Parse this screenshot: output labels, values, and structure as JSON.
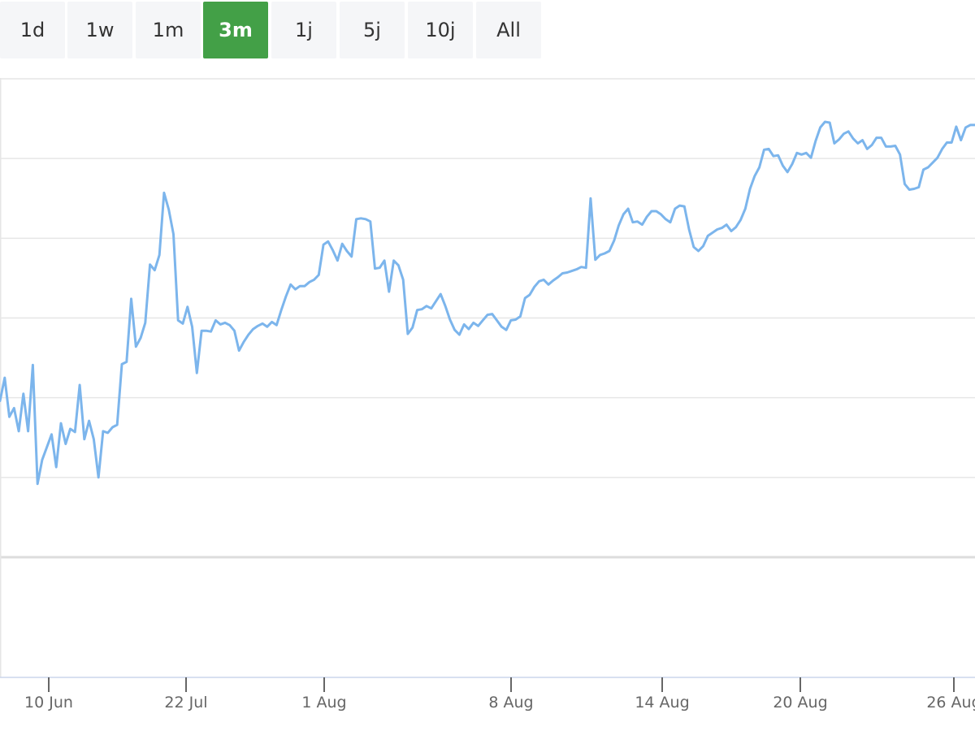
{
  "range_selector": {
    "buttons": [
      "1d",
      "1w",
      "1m",
      "3m",
      "1j",
      "5j",
      "10j",
      "All"
    ],
    "active": "3m"
  },
  "colors": {
    "series": "#7cb5ec",
    "active_button": "#43a047",
    "button_bg": "#f5f6f8",
    "grid": "#e6e6e6"
  },
  "chart_data": {
    "type": "line",
    "title": "",
    "xlabel": "",
    "ylabel": "",
    "x_ticks": [
      "10 Jun",
      "22 Jul",
      "1 Aug",
      "8 Aug",
      "14 Aug",
      "20 Aug",
      "26 Aug"
    ],
    "grid": true,
    "legend": "none",
    "y_axis_labels_shown": false,
    "ylim": [
      0,
      6
    ],
    "series": [
      {
        "values": [
          1.96,
          2.25,
          1.76,
          1.87,
          1.58,
          2.05,
          1.58,
          2.41,
          0.92,
          1.22,
          1.38,
          1.54,
          1.13,
          1.68,
          1.42,
          1.61,
          1.57,
          2.16,
          1.48,
          1.71,
          1.48,
          1.0,
          1.58,
          1.56,
          1.63,
          1.66,
          2.42,
          2.45,
          3.24,
          2.64,
          2.75,
          2.94,
          3.67,
          3.6,
          3.79,
          4.57,
          4.36,
          4.05,
          2.97,
          2.93,
          3.14,
          2.89,
          2.31,
          2.84,
          2.84,
          2.83,
          2.97,
          2.92,
          2.94,
          2.91,
          2.84,
          2.59,
          2.7,
          2.79,
          2.86,
          2.9,
          2.93,
          2.89,
          2.95,
          2.91,
          3.1,
          3.27,
          3.42,
          3.36,
          3.4,
          3.4,
          3.45,
          3.48,
          3.54,
          3.92,
          3.96,
          3.85,
          3.72,
          3.93,
          3.84,
          3.77,
          4.24,
          4.25,
          4.24,
          4.21,
          3.62,
          3.63,
          3.72,
          3.33,
          3.72,
          3.66,
          3.48,
          2.8,
          2.88,
          3.1,
          3.11,
          3.15,
          3.12,
          3.21,
          3.3,
          3.15,
          2.98,
          2.85,
          2.79,
          2.92,
          2.86,
          2.94,
          2.9,
          2.97,
          3.04,
          3.05,
          2.97,
          2.89,
          2.85,
          2.97,
          2.98,
          3.02,
          3.25,
          3.29,
          3.39,
          3.46,
          3.48,
          3.42,
          3.47,
          3.51,
          3.56,
          3.57,
          3.59,
          3.61,
          3.64,
          3.63,
          4.5,
          3.73,
          3.79,
          3.81,
          3.84,
          3.97,
          4.16,
          4.3,
          4.37,
          4.2,
          4.21,
          4.17,
          4.27,
          4.34,
          4.34,
          4.3,
          4.24,
          4.2,
          4.37,
          4.41,
          4.4,
          4.11,
          3.89,
          3.84,
          3.9,
          4.03,
          4.07,
          4.11,
          4.13,
          4.17,
          4.09,
          4.14,
          4.23,
          4.37,
          4.62,
          4.78,
          4.89,
          5.11,
          5.12,
          5.03,
          5.04,
          4.91,
          4.83,
          4.93,
          5.07,
          5.05,
          5.07,
          5.01,
          5.22,
          5.39,
          5.46,
          5.45,
          5.19,
          5.24,
          5.31,
          5.34,
          5.25,
          5.19,
          5.23,
          5.12,
          5.17,
          5.26,
          5.26,
          5.15,
          5.15,
          5.16,
          5.05,
          4.68,
          4.61,
          4.62,
          4.64,
          4.86,
          4.89,
          4.95,
          5.01,
          5.12,
          5.2,
          5.2,
          5.4,
          5.23,
          5.39,
          5.42,
          5.42
        ]
      }
    ]
  }
}
